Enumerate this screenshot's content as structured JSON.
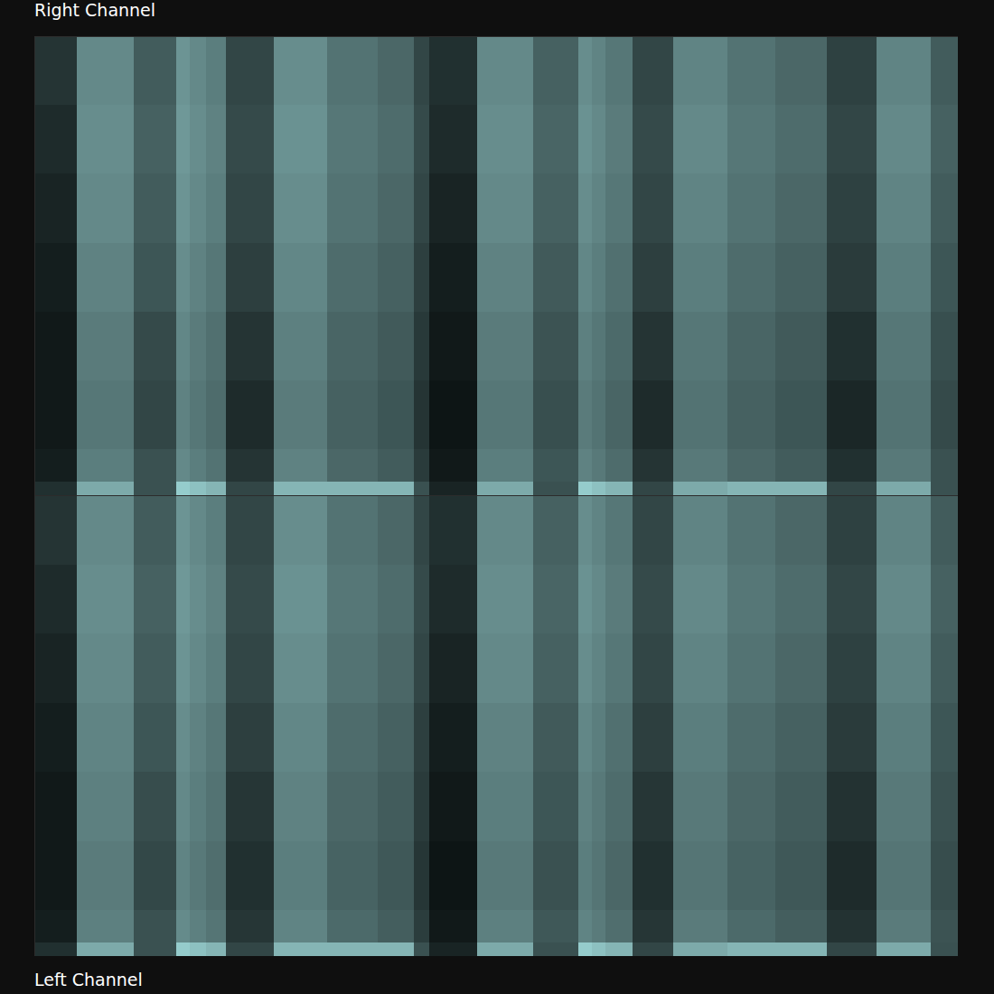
{
  "chart_data": [
    {
      "type": "heatmap",
      "title": "Right Channel",
      "tick_labels": false,
      "xlim": [
        0,
        100
      ],
      "ylim": [
        0,
        100
      ],
      "zlim": [
        0,
        100
      ],
      "time_bins": [
        0,
        4.6,
        10.8,
        15.4,
        16.8,
        18.6,
        20.7,
        25.9,
        31.7,
        37.2,
        41.1,
        42.8,
        47.9,
        54.0,
        58.9,
        60.4,
        61.8,
        64.8,
        69.2,
        75.0,
        80.2,
        85.8,
        91.2,
        97.1,
        100
      ],
      "frequency_bins": [
        0,
        3,
        10,
        25,
        40,
        55,
        70,
        85,
        100
      ],
      "values": [
        [
          20,
          12,
          10,
          10,
          12,
          15,
          18,
          22
        ],
        [
          75,
          55,
          52,
          54,
          57,
          60,
          62,
          60
        ],
        [
          35,
          35,
          30,
          32,
          37,
          40,
          42,
          40
        ],
        [
          90,
          60,
          57,
          59,
          62,
          65,
          67,
          65
        ],
        [
          85,
          55,
          52,
          54,
          57,
          60,
          62,
          60
        ],
        [
          80,
          50,
          47,
          49,
          52,
          55,
          57,
          55
        ],
        [
          30,
          22,
          18,
          22,
          27,
          30,
          32,
          30
        ],
        [
          80,
          57,
          54,
          56,
          59,
          62,
          64,
          62
        ],
        [
          80,
          45,
          42,
          44,
          47,
          50,
          52,
          50
        ],
        [
          80,
          40,
          37,
          39,
          42,
          45,
          47,
          45
        ],
        [
          35,
          25,
          22,
          24,
          27,
          30,
          32,
          30
        ],
        [
          15,
          10,
          8,
          10,
          12,
          15,
          18,
          20
        ],
        [
          75,
          55,
          52,
          54,
          57,
          60,
          62,
          60
        ],
        [
          35,
          37,
          34,
          36,
          39,
          42,
          44,
          42
        ],
        [
          90,
          57,
          54,
          56,
          59,
          62,
          64,
          62
        ],
        [
          85,
          53,
          50,
          52,
          55,
          58,
          60,
          58
        ],
        [
          80,
          47,
          44,
          46,
          49,
          52,
          54,
          52
        ],
        [
          30,
          22,
          18,
          22,
          27,
          30,
          32,
          30
        ],
        [
          75,
          53,
          50,
          52,
          55,
          58,
          60,
          58
        ],
        [
          80,
          45,
          42,
          44,
          47,
          50,
          52,
          50
        ],
        [
          80,
          40,
          37,
          39,
          42,
          45,
          47,
          45
        ],
        [
          30,
          20,
          16,
          20,
          25,
          28,
          30,
          28
        ],
        [
          75,
          53,
          50,
          52,
          55,
          58,
          60,
          58
        ],
        [
          35,
          35,
          32,
          34,
          37,
          40,
          42,
          40
        ]
      ]
    },
    {
      "type": "heatmap",
      "title": "Left Channel",
      "tick_labels": false,
      "xlim": [
        0,
        100
      ],
      "ylim": [
        0,
        100
      ],
      "zlim": [
        0,
        100
      ],
      "time_bins": [
        0,
        4.6,
        10.8,
        15.4,
        16.8,
        18.6,
        20.7,
        25.9,
        31.7,
        37.2,
        41.1,
        42.8,
        47.9,
        54.0,
        58.9,
        60.4,
        61.8,
        64.8,
        69.2,
        75.0,
        80.2,
        85.8,
        91.2,
        97.1,
        100
      ],
      "frequency_bins": [
        0,
        3,
        10,
        25,
        40,
        55,
        70,
        85,
        100
      ],
      "values": [
        [
          20,
          12,
          10,
          10,
          12,
          15,
          18,
          22
        ],
        [
          75,
          56,
          54,
          56,
          58,
          60,
          62,
          60
        ],
        [
          35,
          35,
          31,
          33,
          37,
          40,
          42,
          40
        ],
        [
          90,
          61,
          58,
          60,
          62,
          65,
          67,
          65
        ],
        [
          85,
          56,
          53,
          55,
          57,
          60,
          62,
          60
        ],
        [
          80,
          51,
          48,
          50,
          52,
          55,
          57,
          55
        ],
        [
          30,
          23,
          20,
          23,
          27,
          30,
          32,
          30
        ],
        [
          80,
          58,
          55,
          57,
          59,
          62,
          64,
          62
        ],
        [
          80,
          46,
          43,
          45,
          47,
          50,
          52,
          50
        ],
        [
          80,
          41,
          38,
          40,
          42,
          45,
          47,
          45
        ],
        [
          35,
          26,
          23,
          25,
          27,
          30,
          32,
          30
        ],
        [
          15,
          10,
          8,
          10,
          12,
          15,
          18,
          20
        ],
        [
          75,
          56,
          53,
          55,
          57,
          60,
          62,
          60
        ],
        [
          35,
          38,
          35,
          37,
          39,
          42,
          44,
          42
        ],
        [
          90,
          58,
          55,
          57,
          59,
          62,
          64,
          62
        ],
        [
          85,
          54,
          51,
          53,
          55,
          58,
          60,
          58
        ],
        [
          80,
          48,
          45,
          47,
          49,
          52,
          54,
          52
        ],
        [
          30,
          23,
          20,
          23,
          27,
          30,
          32,
          30
        ],
        [
          75,
          54,
          51,
          53,
          55,
          58,
          60,
          58
        ],
        [
          80,
          46,
          43,
          45,
          47,
          50,
          52,
          50
        ],
        [
          80,
          41,
          38,
          40,
          42,
          45,
          47,
          45
        ],
        [
          30,
          21,
          18,
          21,
          25,
          28,
          30,
          28
        ],
        [
          75,
          54,
          51,
          53,
          55,
          58,
          60,
          58
        ],
        [
          35,
          36,
          33,
          35,
          37,
          40,
          42,
          40
        ]
      ]
    }
  ]
}
